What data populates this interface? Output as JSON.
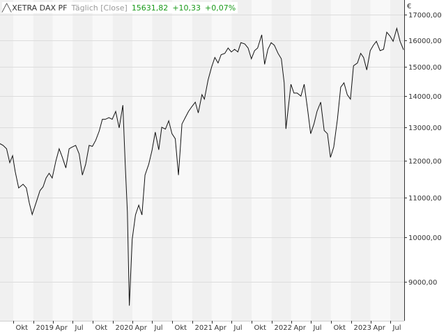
{
  "header": {
    "glyph": "╱╲",
    "instrument": "XETRA DAX PF",
    "meta": "Täglich [Close]",
    "last": "15631,82",
    "change": "+10,33",
    "change_pct": "+0,07%",
    "change_color": "#1a9a1a",
    "trend_icon": "line-chart-icon"
  },
  "chart_data": {
    "type": "line",
    "currency": "€",
    "yscale": "log",
    "ylim": [
      8200,
      17600
    ],
    "yticks": [
      9000,
      10000,
      11000,
      12000,
      13000,
      14000,
      15000,
      16000,
      17000
    ],
    "ytick_labels": [
      "9000,00",
      "10000,00",
      "11000,00",
      "12000,00",
      "13000,00",
      "14000,00",
      "15000,00",
      "16000,00",
      "17000,00"
    ],
    "xlim": [
      "2018-08-01",
      "2023-09-03"
    ],
    "xticks": [
      "2018-10-01",
      "2019-01-01",
      "2019-04-01",
      "2019-07-01",
      "2019-10-01",
      "2020-01-01",
      "2020-04-01",
      "2020-07-01",
      "2020-10-01",
      "2021-01-01",
      "2021-04-01",
      "2021-07-01",
      "2021-10-01",
      "2022-01-01",
      "2022-04-01",
      "2022-07-01",
      "2022-10-01",
      "2023-01-01",
      "2023-04-01",
      "2023-07-01"
    ],
    "xtick_labels": [
      "Okt",
      "2019",
      "Apr",
      "Jul",
      "Okt",
      "2020",
      "Apr",
      "Jul",
      "Okt",
      "2021",
      "Apr",
      "Jul",
      "Okt",
      "2022",
      "Apr",
      "Jul",
      "Okt",
      "2023",
      "Apr",
      "Jul"
    ],
    "grid": true,
    "series": [
      {
        "color": "#111111",
        "x": [
          "2018-08-01",
          "2018-08-15",
          "2018-08-31",
          "2018-09-15",
          "2018-09-28",
          "2018-10-10",
          "2018-10-26",
          "2018-11-15",
          "2018-11-30",
          "2018-12-14",
          "2018-12-27",
          "2019-01-15",
          "2019-02-01",
          "2019-02-15",
          "2019-03-01",
          "2019-03-15",
          "2019-03-29",
          "2019-04-15",
          "2019-04-30",
          "2019-05-15",
          "2019-05-31",
          "2019-06-15",
          "2019-06-28",
          "2019-07-15",
          "2019-07-31",
          "2019-08-15",
          "2019-08-30",
          "2019-09-15",
          "2019-09-30",
          "2019-10-15",
          "2019-10-31",
          "2019-11-15",
          "2019-11-29",
          "2019-12-15",
          "2019-12-30",
          "2020-01-15",
          "2020-01-31",
          "2020-02-17",
          "2020-02-28",
          "2020-03-09",
          "2020-03-18",
          "2020-03-31",
          "2020-04-15",
          "2020-04-30",
          "2020-05-15",
          "2020-05-29",
          "2020-06-15",
          "2020-06-30",
          "2020-07-15",
          "2020-07-31",
          "2020-08-14",
          "2020-08-31",
          "2020-09-15",
          "2020-09-30",
          "2020-10-15",
          "2020-10-30",
          "2020-11-15",
          "2020-11-30",
          "2020-12-15",
          "2020-12-30",
          "2021-01-15",
          "2021-01-29",
          "2021-02-15",
          "2021-02-26",
          "2021-03-15",
          "2021-03-31",
          "2021-04-15",
          "2021-04-30",
          "2021-05-14",
          "2021-05-31",
          "2021-06-15",
          "2021-06-30",
          "2021-07-15",
          "2021-07-30",
          "2021-08-13",
          "2021-08-31",
          "2021-09-15",
          "2021-09-30",
          "2021-10-15",
          "2021-10-29",
          "2021-11-17",
          "2021-11-30",
          "2021-12-15",
          "2021-12-30",
          "2022-01-14",
          "2022-01-31",
          "2022-02-15",
          "2022-02-28",
          "2022-03-08",
          "2022-03-31",
          "2022-04-14",
          "2022-04-29",
          "2022-05-16",
          "2022-05-31",
          "2022-06-15",
          "2022-06-30",
          "2022-07-15",
          "2022-07-29",
          "2022-08-15",
          "2022-08-31",
          "2022-09-15",
          "2022-09-29",
          "2022-10-14",
          "2022-10-31",
          "2022-11-15",
          "2022-11-30",
          "2022-12-15",
          "2022-12-30",
          "2023-01-13",
          "2023-01-31",
          "2023-02-15",
          "2023-02-28",
          "2023-03-15",
          "2023-03-31",
          "2023-04-14",
          "2023-04-28",
          "2023-05-15",
          "2023-05-31",
          "2023-06-15",
          "2023-06-30",
          "2023-07-14",
          "2023-07-31",
          "2023-08-15",
          "2023-08-31"
        ],
        "y": [
          12500,
          12450,
          12350,
          11950,
          12150,
          11700,
          11250,
          11350,
          11250,
          10850,
          10560,
          10880,
          11180,
          11280,
          11520,
          11650,
          11520,
          12000,
          12350,
          12100,
          11800,
          12350,
          12400,
          12450,
          12200,
          11600,
          11900,
          12450,
          12420,
          12600,
          12880,
          13250,
          13250,
          13300,
          13250,
          13500,
          12980,
          13700,
          11900,
          10620,
          8500,
          9950,
          10550,
          10800,
          10550,
          11600,
          11900,
          12300,
          12850,
          12320,
          13000,
          12940,
          13200,
          12800,
          12650,
          11600,
          13100,
          13300,
          13500,
          13650,
          13800,
          13450,
          14050,
          13900,
          14550,
          15000,
          15350,
          15150,
          15450,
          15500,
          15700,
          15550,
          15650,
          15550,
          15900,
          15850,
          15700,
          15300,
          15600,
          15700,
          16200,
          15100,
          15650,
          15900,
          15800,
          15500,
          15300,
          14450,
          12950,
          14400,
          14100,
          14100,
          14000,
          14400,
          13600,
          12800,
          13100,
          13500,
          13800,
          12900,
          12800,
          12100,
          12400,
          13250,
          14300,
          14450,
          14050,
          13900,
          15050,
          15150,
          15500,
          15350,
          14900,
          15600,
          15800,
          15950,
          15600,
          15650,
          16300,
          16150,
          15950,
          16450,
          15950,
          15631.82
        ]
      }
    ]
  }
}
